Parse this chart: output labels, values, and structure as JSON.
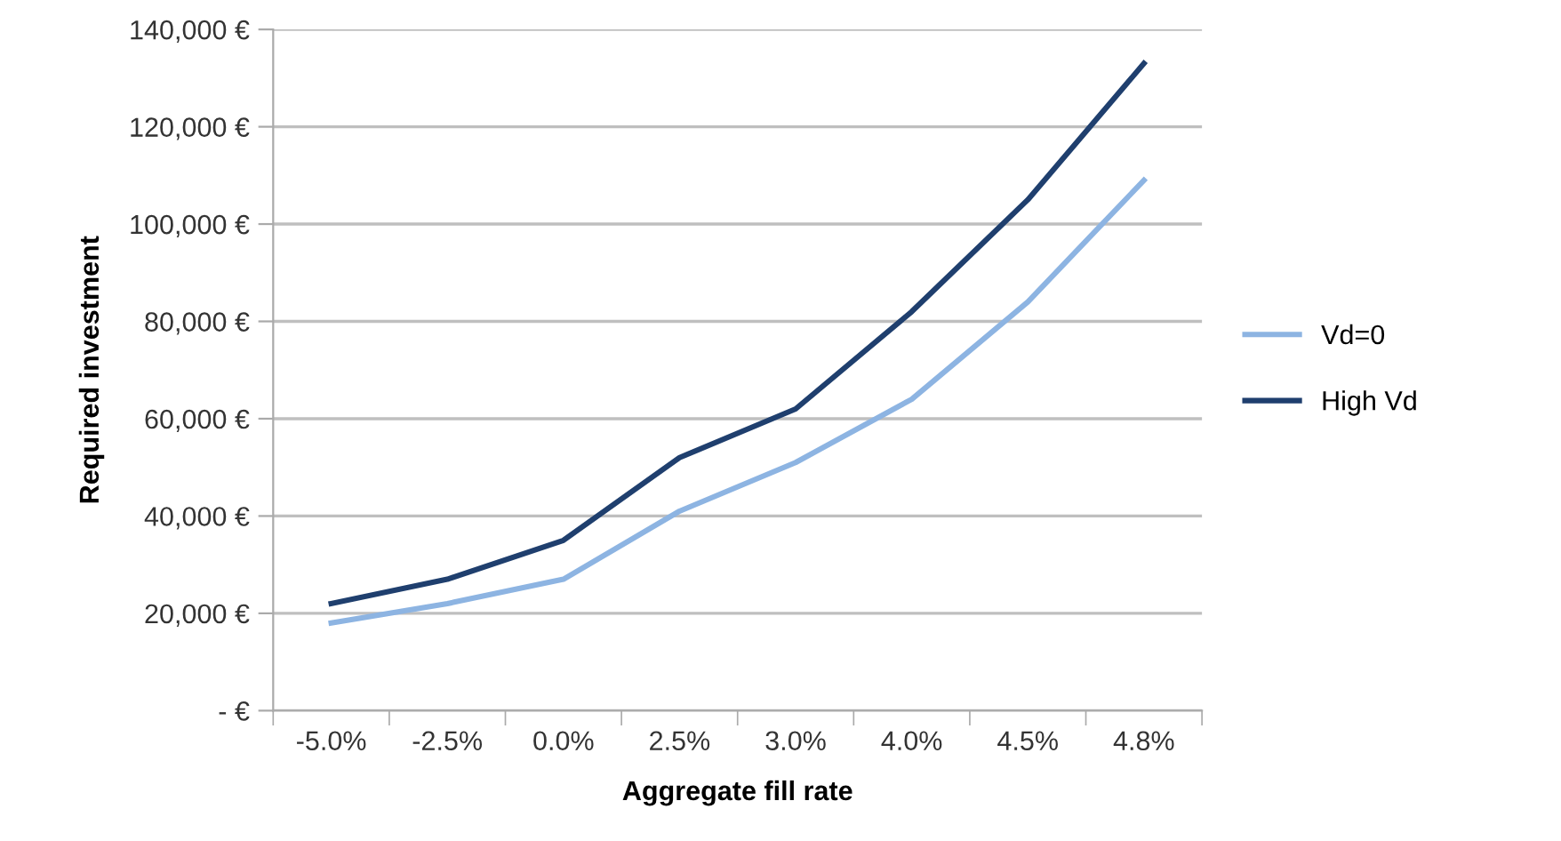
{
  "chart_data": {
    "type": "line",
    "xlabel": "Aggregate fill rate",
    "ylabel": "Required investment",
    "categories": [
      "-5.0%",
      "-2.5%",
      "0.0%",
      "2.5%",
      "3.0%",
      "4.0%",
      "4.5%",
      "4.8%"
    ],
    "series": [
      {
        "name": "Vd=0",
        "color": "#8db4e2",
        "values": [
          18000,
          22000,
          27000,
          41000,
          51000,
          64000,
          84000,
          109000
        ]
      },
      {
        "name": "High Vd",
        "color": "#1f3f6e",
        "values": [
          22000,
          27000,
          35000,
          52000,
          62000,
          82000,
          105000,
          133000
        ]
      }
    ],
    "ylim": [
      0,
      140000
    ],
    "yticks": [
      {
        "value": 0,
        "label": "- €"
      },
      {
        "value": 20000,
        "label": "20,000 €"
      },
      {
        "value": 40000,
        "label": "40,000 €"
      },
      {
        "value": 60000,
        "label": "60,000 €"
      },
      {
        "value": 80000,
        "label": "80,000 €"
      },
      {
        "value": 100000,
        "label": "100,000 €"
      },
      {
        "value": 120000,
        "label": "120,000 €"
      },
      {
        "value": 140000,
        "label": "140,000 €"
      }
    ],
    "grid": "y",
    "legend": "right",
    "marker": "none",
    "line_style": "solid"
  }
}
